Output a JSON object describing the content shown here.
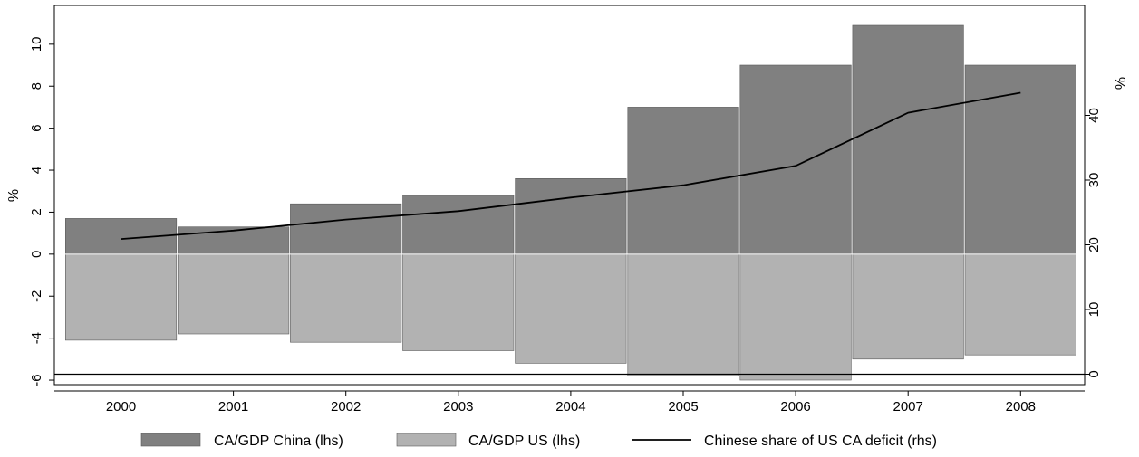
{
  "chart_data": {
    "type": "bar",
    "categories": [
      "2000",
      "2001",
      "2002",
      "2003",
      "2004",
      "2005",
      "2006",
      "2007",
      "2008"
    ],
    "series": [
      {
        "name": "CA/GDP China (lhs)",
        "kind": "bar",
        "axis": "left",
        "color": "#808080",
        "values": [
          1.7,
          1.3,
          2.4,
          2.8,
          3.6,
          7.0,
          9.0,
          10.9,
          9.0
        ]
      },
      {
        "name": "CA/GDP US (lhs)",
        "kind": "bar",
        "axis": "left",
        "color": "#b2b2b2",
        "values": [
          -4.1,
          -3.8,
          -4.2,
          -4.6,
          -5.2,
          -5.8,
          -6.0,
          -5.0,
          -4.8
        ]
      },
      {
        "name": "Chinese share of US CA deficit (rhs)",
        "kind": "line",
        "axis": "right",
        "color": "#000000",
        "values": [
          20.9,
          22.2,
          23.9,
          25.2,
          27.3,
          29.2,
          32.2,
          40.4,
          43.5
        ]
      }
    ],
    "ylabel": "%",
    "ylabel_right": "%",
    "ylim": [
      -6.3,
      11.2
    ],
    "ylim_right": [
      -0.5,
      45.5
    ],
    "yticks": [
      "-6",
      "-4",
      "-2",
      "0",
      "2",
      "4",
      "6",
      "8",
      "10"
    ],
    "yticks_right": [
      "0",
      "10",
      "20",
      "30",
      "40"
    ],
    "grid": false,
    "legend_position": "bottom"
  }
}
